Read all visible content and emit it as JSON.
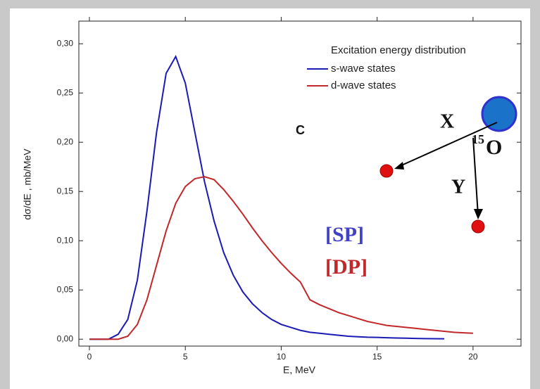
{
  "chart_data": {
    "type": "line",
    "xlabel": "E, MeV",
    "ylabel": "dσ/dE , mb/MeV",
    "legend_title": "Excitation energy distribution",
    "x": [
      0,
      0.5,
      1,
      1.5,
      2,
      2.5,
      3,
      3.5,
      4,
      4.5,
      5,
      5.5,
      6,
      6.5,
      7,
      7.5,
      8,
      8.5,
      9,
      9.5,
      10,
      10.5,
      11,
      11.5,
      12,
      12.5,
      13,
      13.5,
      14,
      14.5,
      15,
      15.5,
      16,
      16.5,
      17,
      17.5,
      18,
      18.5,
      19,
      19.5,
      20
    ],
    "series": [
      {
        "name": "s-wave states",
        "color": "#1a1ab4",
        "values": [
          0,
          0,
          0,
          0.005,
          0.02,
          0.06,
          0.13,
          0.21,
          0.27,
          0.287,
          0.26,
          0.21,
          0.16,
          0.12,
          0.088,
          0.065,
          0.048,
          0.036,
          0.027,
          0.02,
          0.015,
          0.012,
          0.009,
          0.007,
          0.006,
          0.005,
          0.004,
          0.003,
          0.0025,
          0.002,
          0.0018,
          0.0015,
          0.0012,
          0.001,
          0.0008,
          0.0006,
          0.0005,
          0.0004,
          null,
          null,
          null
        ]
      },
      {
        "name": "d-wave states",
        "color": "#c0282a",
        "values": [
          0,
          0,
          0,
          0,
          0.003,
          0.015,
          0.04,
          0.075,
          0.11,
          0.138,
          0.155,
          0.163,
          0.165,
          0.162,
          0.152,
          0.14,
          0.127,
          0.113,
          0.1,
          0.088,
          0.077,
          0.067,
          0.058,
          0.04,
          0.035,
          0.031,
          0.027,
          0.024,
          0.021,
          0.018,
          0.016,
          0.014,
          0.013,
          0.012,
          0.011,
          0.01,
          0.009,
          0.008,
          0.007,
          0.0065,
          0.006
        ]
      }
    ],
    "xlim": [
      -0.55,
      22.5
    ],
    "ylim": [
      -0.007,
      0.323
    ],
    "xticks": [
      0,
      5,
      10,
      15,
      20
    ],
    "yticks": [
      {
        "value": 0,
        "label": "0,00"
      },
      {
        "value": 0.05,
        "label": "0,05"
      },
      {
        "value": 0.1,
        "label": "0,10"
      },
      {
        "value": 0.15,
        "label": "0,15"
      },
      {
        "value": 0.2,
        "label": "0,20"
      },
      {
        "value": 0.25,
        "label": "0,25"
      },
      {
        "value": 0.3,
        "label": "0,30"
      }
    ],
    "annotations": [
      "C",
      "[SP]",
      "[DP]",
      "X",
      "15",
      "O",
      "Y"
    ]
  }
}
